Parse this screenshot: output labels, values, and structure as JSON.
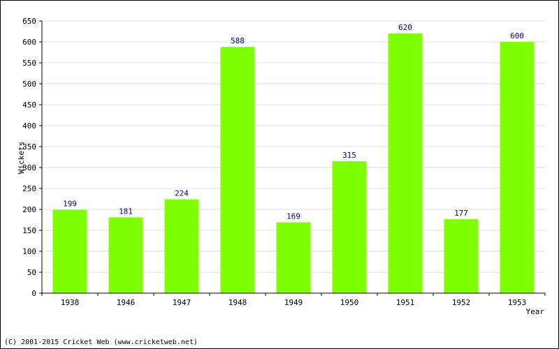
{
  "chart_data": {
    "type": "bar",
    "categories": [
      "1938",
      "1946",
      "1947",
      "1948",
      "1949",
      "1950",
      "1951",
      "1952",
      "1953"
    ],
    "values": [
      199,
      181,
      224,
      588,
      169,
      315,
      620,
      177,
      600
    ],
    "xlabel": "Year",
    "ylabel": "Wickets",
    "ylim": [
      0,
      650
    ],
    "ytick_step": 50,
    "grid": "horizontal",
    "bar_color": "#7fff00",
    "label_color": "#00008b",
    "grid_color": "#dddddd"
  },
  "footer": {
    "copyright": "(C) 2001-2015 Cricket Web (www.cricketweb.net)"
  }
}
